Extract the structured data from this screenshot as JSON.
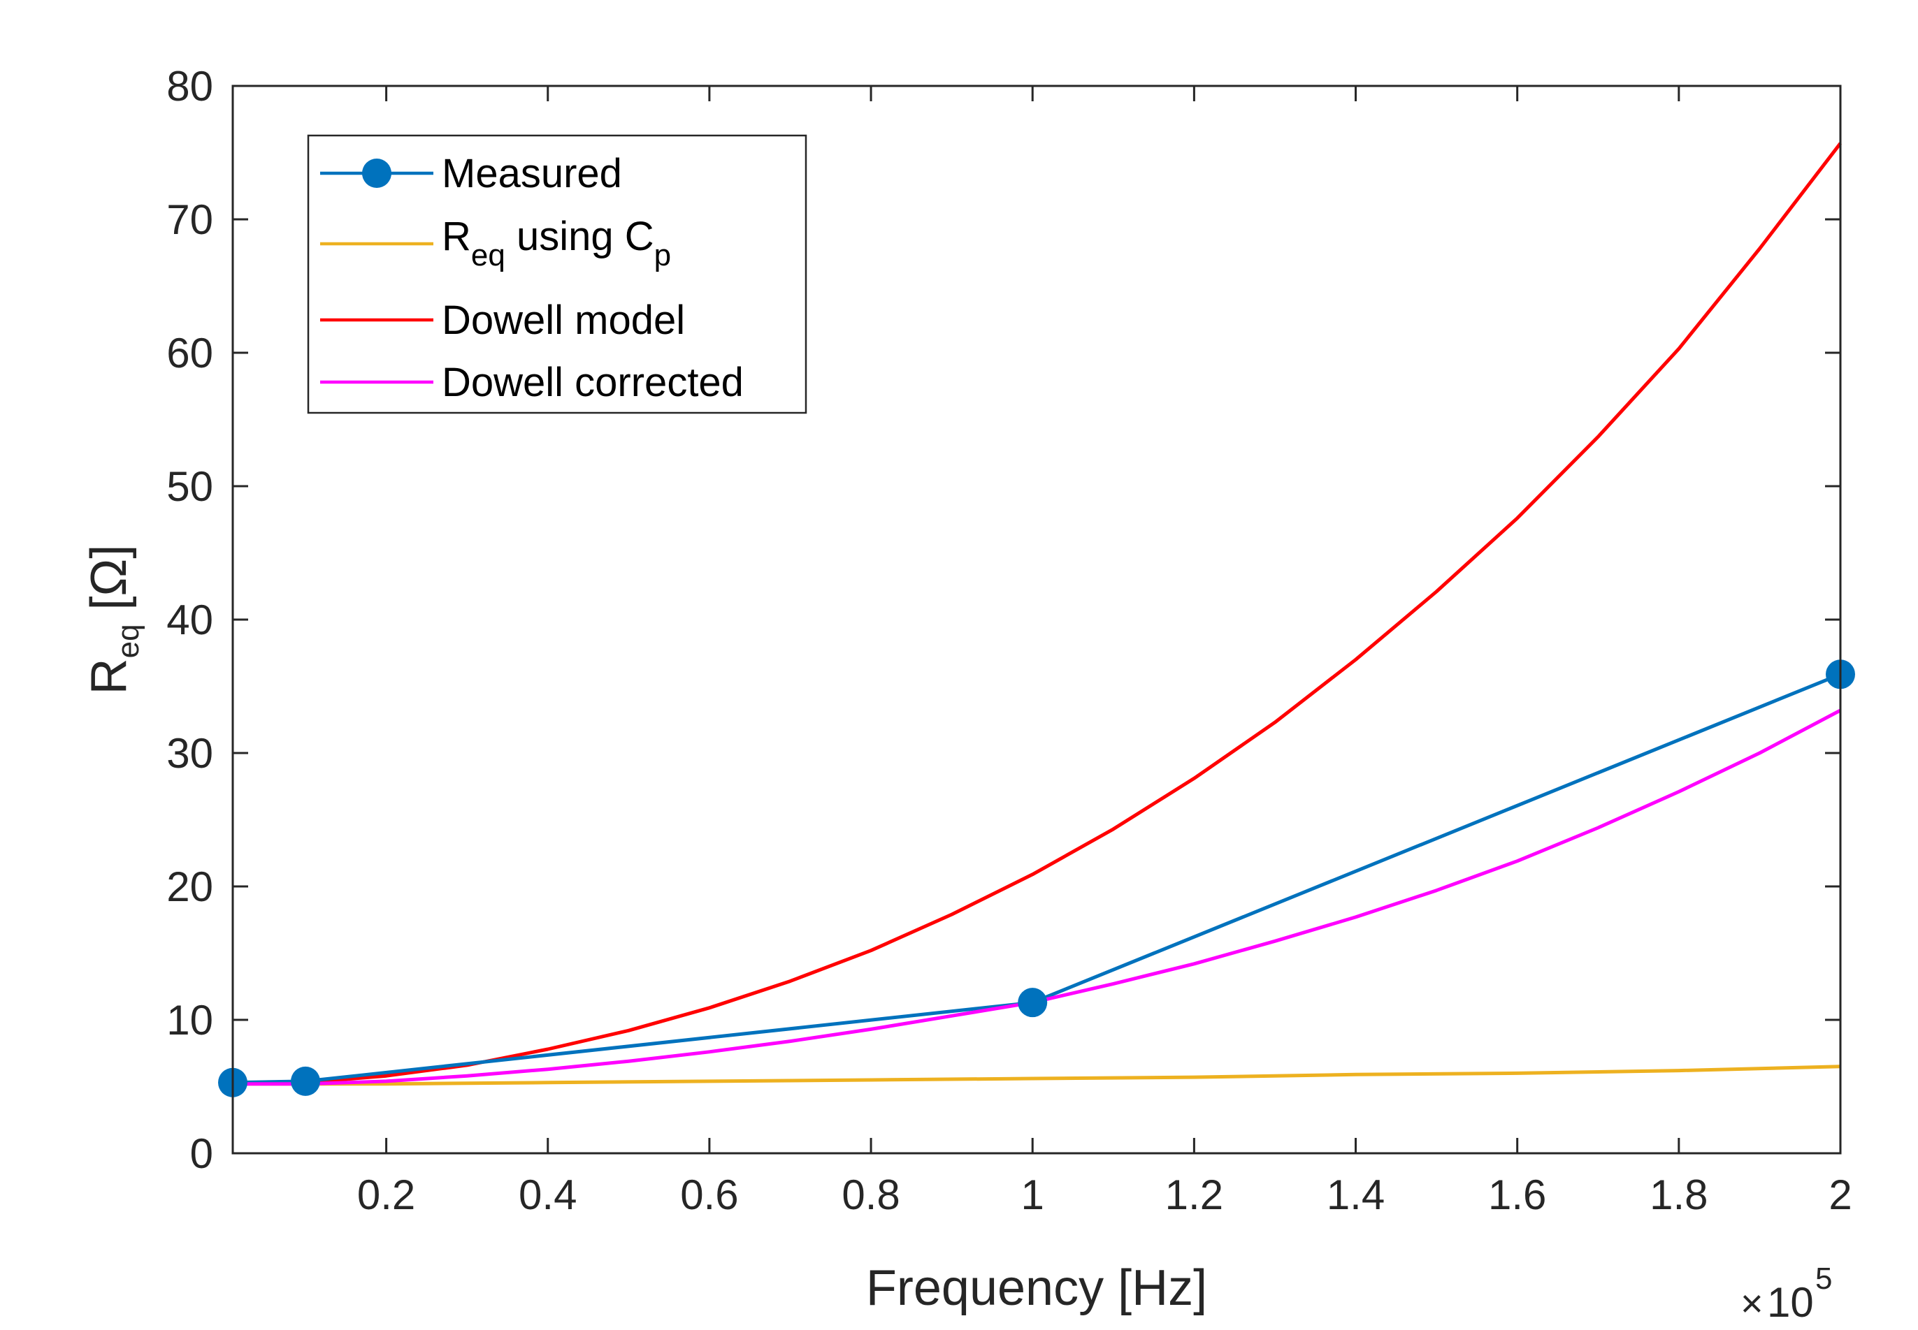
{
  "chart_data": {
    "type": "line",
    "xlabel": "Frequency [Hz]",
    "ylabel_main": "R",
    "ylabel_sub": "eq",
    "ylabel_unit": "[Ω]",
    "x_multiplier": {
      "times": "×",
      "base": "10",
      "exponent": "5"
    },
    "xlim": [
      0.01,
      2
    ],
    "ylim": [
      0,
      80
    ],
    "x_ticks": [
      0.2,
      0.4,
      0.6,
      0.8,
      1,
      1.2,
      1.4,
      1.6,
      1.8,
      2
    ],
    "x_tick_labels": [
      "0.2",
      "0.4",
      "0.6",
      "0.8",
      "1",
      "1.2",
      "1.4",
      "1.6",
      "1.8",
      "2"
    ],
    "y_ticks": [
      0,
      10,
      20,
      30,
      40,
      50,
      60,
      70,
      80
    ],
    "y_tick_labels": [
      "0",
      "10",
      "20",
      "30",
      "40",
      "50",
      "60",
      "70",
      "80"
    ],
    "legend_position": "top-left",
    "series": [
      {
        "name": "Measured",
        "color": "#0072BD",
        "marker": "circle",
        "x": [
          0.01,
          0.1,
          1,
          2
        ],
        "y": [
          5.3,
          5.4,
          11.3,
          35.9
        ]
      },
      {
        "name_main": "R",
        "name_sub1": "eq",
        "name_mid": " using C",
        "name_sub2": "p",
        "color": "#EDB120",
        "x": [
          0.01,
          0.2,
          0.4,
          0.6,
          0.8,
          1.0,
          1.2,
          1.4,
          1.6,
          1.8,
          2.0
        ],
        "y": [
          5.2,
          5.2,
          5.3,
          5.4,
          5.5,
          5.6,
          5.7,
          5.9,
          6.0,
          6.2,
          6.5
        ]
      },
      {
        "name": "Dowell model",
        "color": "#FF0000",
        "x": [
          0.01,
          0.1,
          0.2,
          0.3,
          0.4,
          0.5,
          0.6,
          0.7,
          0.8,
          0.9,
          1.0,
          1.1,
          1.2,
          1.3,
          1.4,
          1.5,
          1.6,
          1.7,
          1.8,
          1.9,
          2.0
        ],
        "y": [
          5.2,
          5.3,
          5.8,
          6.6,
          7.8,
          9.2,
          10.9,
          12.9,
          15.2,
          17.9,
          20.9,
          24.3,
          28.1,
          32.3,
          37.0,
          42.1,
          47.6,
          53.7,
          60.3,
          67.8,
          75.7
        ]
      },
      {
        "name": "Dowell corrected",
        "color": "#FF00FF",
        "x": [
          0.01,
          0.1,
          0.2,
          0.3,
          0.4,
          0.5,
          0.6,
          0.7,
          0.8,
          0.9,
          1.0,
          1.1,
          1.2,
          1.3,
          1.4,
          1.5,
          1.6,
          1.7,
          1.8,
          1.9,
          2.0
        ],
        "y": [
          5.2,
          5.2,
          5.4,
          5.8,
          6.3,
          6.9,
          7.6,
          8.4,
          9.3,
          10.3,
          11.3,
          12.7,
          14.2,
          15.9,
          17.7,
          19.7,
          21.9,
          24.4,
          27.1,
          30.0,
          33.2
        ]
      }
    ]
  }
}
